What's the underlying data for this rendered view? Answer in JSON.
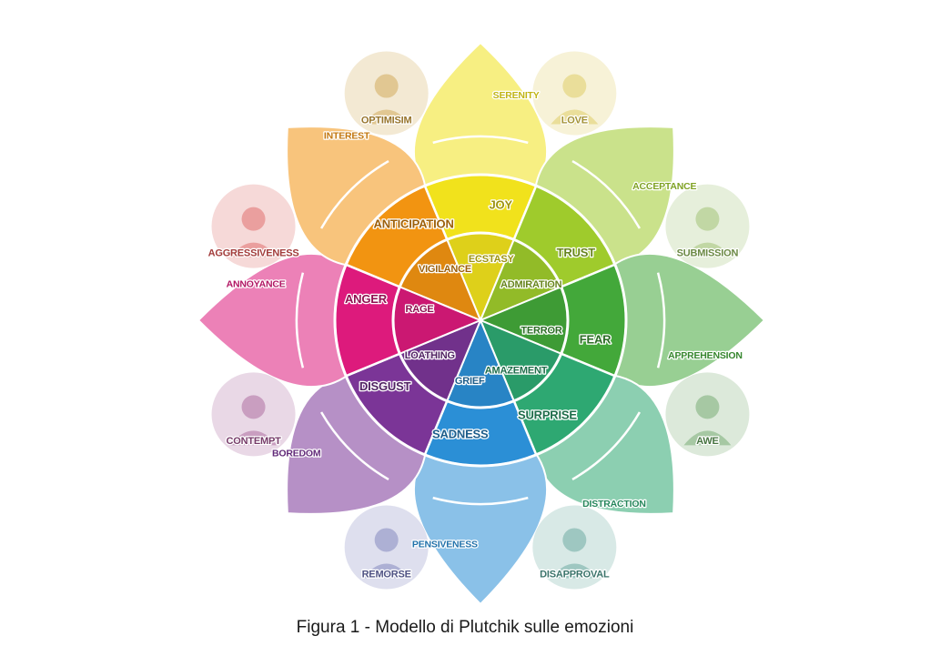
{
  "caption": "Figura 1 - Modello di Plutchik sulle emozioni",
  "emotions": [
    {
      "key": "joy",
      "strong": "ECSTASY",
      "basic": "JOY",
      "mild": "SERENITY",
      "color": "#f1e21c"
    },
    {
      "key": "trust",
      "strong": "ADMIRATION",
      "basic": "TRUST",
      "mild": "ACCEPTANCE",
      "color": "#9fcb2c"
    },
    {
      "key": "fear",
      "strong": "TERROR",
      "basic": "FEAR",
      "mild": "APPREHENSION",
      "color": "#43a83a"
    },
    {
      "key": "surprise",
      "strong": "AMAZEMENT",
      "basic": "SURPRISE",
      "mild": "DISTRACTION",
      "color": "#2ea872"
    },
    {
      "key": "sadness",
      "strong": "GRIEF",
      "basic": "SADNESS",
      "mild": "PENSIVENESS",
      "color": "#2b8fd6"
    },
    {
      "key": "disgust",
      "strong": "LOATHING",
      "basic": "DISGUST",
      "mild": "BOREDOM",
      "color": "#7b3597"
    },
    {
      "key": "anger",
      "strong": "RAGE",
      "basic": "ANGER",
      "mild": "ANNOYANCE",
      "color": "#dd1a7c"
    },
    {
      "key": "anticipation",
      "strong": "VIGILANCE",
      "basic": "ANTICIPATION",
      "mild": "INTEREST",
      "color": "#f29411"
    }
  ],
  "dyads": [
    {
      "label": "LOVE",
      "color": "#d9c347"
    },
    {
      "label": "SUBMISSION",
      "color": "#8fb75a"
    },
    {
      "label": "AWE",
      "color": "#5e9b57"
    },
    {
      "label": "DISAPPROVAL",
      "color": "#4f9a8f"
    },
    {
      "label": "REMORSE",
      "color": "#6a6fb0"
    },
    {
      "label": "CONTEMPT",
      "color": "#9d4f8c"
    },
    {
      "label": "AGGRESSIVENESS",
      "color": "#d8504f"
    },
    {
      "label": "OPTIMISIM",
      "color": "#c99a39"
    }
  ]
}
